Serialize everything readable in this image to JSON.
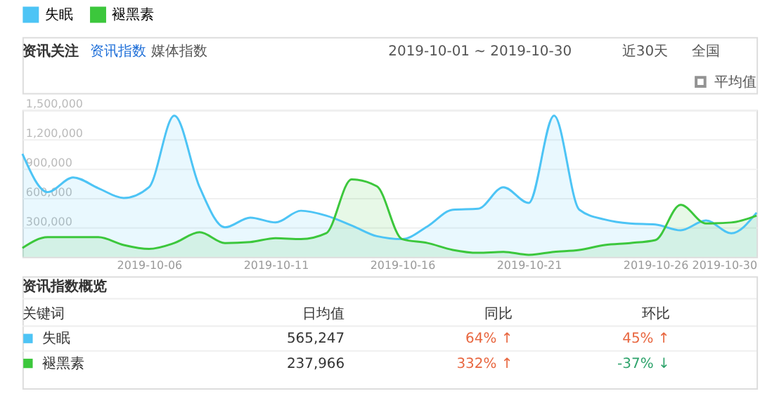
{
  "chart_data": {
    "type": "area",
    "title": "资讯关注",
    "subtitle": "2019-10-01 ~ 2019-10-30",
    "x": [
      "2019-10-01",
      "2019-10-02",
      "2019-10-03",
      "2019-10-04",
      "2019-10-05",
      "2019-10-06",
      "2019-10-07",
      "2019-10-08",
      "2019-10-09",
      "2019-10-10",
      "2019-10-11",
      "2019-10-12",
      "2019-10-13",
      "2019-10-14",
      "2019-10-15",
      "2019-10-16",
      "2019-10-17",
      "2019-10-18",
      "2019-10-19",
      "2019-10-20",
      "2019-10-21",
      "2019-10-22",
      "2019-10-23",
      "2019-10-24",
      "2019-10-25",
      "2019-10-26",
      "2019-10-27",
      "2019-10-28",
      "2019-10-29",
      "2019-10-30"
    ],
    "series": [
      {
        "name": "失眠",
        "color": "#4dc4f5",
        "values": [
          1050000,
          660000,
          810000,
          700000,
          600000,
          710000,
          1440000,
          710000,
          300000,
          400000,
          350000,
          470000,
          420000,
          320000,
          210000,
          180000,
          310000,
          480000,
          490000,
          710000,
          550000,
          1440000,
          480000,
          380000,
          340000,
          330000,
          270000,
          370000,
          240000,
          450000
        ]
      },
      {
        "name": "褪黑素",
        "color": "#3cc73c",
        "values": [
          90000,
          200000,
          200000,
          200000,
          120000,
          80000,
          140000,
          250000,
          140000,
          150000,
          190000,
          180000,
          240000,
          790000,
          720000,
          180000,
          140000,
          70000,
          40000,
          50000,
          20000,
          50000,
          70000,
          120000,
          140000,
          170000,
          530000,
          340000,
          350000,
          420000
        ]
      }
    ],
    "xlim": [
      "2019-10-01",
      "2019-10-30"
    ],
    "xticks": [
      {
        "value": "2019-10-06",
        "label": "2019-10-06"
      },
      {
        "value": "2019-10-11",
        "label": "2019-10-11"
      },
      {
        "value": "2019-10-16",
        "label": "2019-10-16"
      },
      {
        "value": "2019-10-21",
        "label": "2019-10-21"
      },
      {
        "value": "2019-10-26",
        "label": "2019-10-26"
      },
      {
        "value": "2019-10-30",
        "label": "2019-10-30"
      }
    ],
    "ylim": [
      0,
      1500000
    ],
    "yticks": [
      {
        "value": 300000,
        "label": "300,000"
      },
      {
        "value": 600000,
        "label": "600,000"
      },
      {
        "value": 900000,
        "label": "900,000"
      },
      {
        "value": 1200000,
        "label": "1,200,000"
      },
      {
        "value": 1500000,
        "label": "1,500,000"
      }
    ],
    "grid": "y",
    "legend": "top left",
    "annotations": [
      "资讯指数",
      "媒体指数",
      "近30天",
      "全国",
      "平均值",
      "资讯指数概览",
      "关键词",
      "日均值",
      "同比",
      "环比",
      "失眠",
      "565,247",
      "64% ↑",
      "45% ↑",
      "褪黑素",
      "237,966",
      "332% ↑",
      "-37% ↓"
    ]
  }
}
